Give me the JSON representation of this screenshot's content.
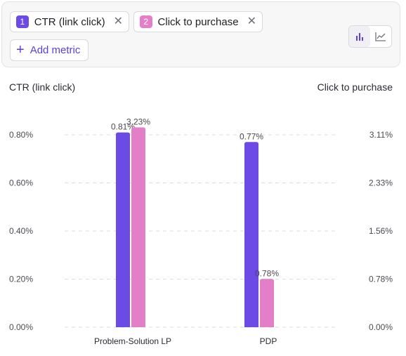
{
  "metrics": [
    {
      "index": "1",
      "label": "CTR (link click)",
      "color": "#6c4ae6"
    },
    {
      "index": "2",
      "label": "Click to purchase",
      "color": "#e27fc8"
    }
  ],
  "add_metric_label": "Add metric",
  "remove_glyph": "✕",
  "view_toggle": {
    "options": [
      "bar-chart-icon",
      "line-chart-icon"
    ],
    "selected": "bar-chart-icon"
  },
  "chart_data": {
    "type": "bar",
    "categories": [
      "Problem-Solution LP",
      "PDP"
    ],
    "series": [
      {
        "name": "CTR (link click)",
        "axis": "left",
        "values": [
          0.81,
          0.77
        ],
        "labels": [
          "0.81%",
          "0.77%"
        ],
        "color": "#6c4ae6"
      },
      {
        "name": "Click to purchase",
        "axis": "right",
        "values": [
          3.23,
          0.78
        ],
        "labels": [
          "3.23%",
          "0.78%"
        ],
        "color": "#e27fc8"
      }
    ],
    "ylabel_left": "CTR (link click)",
    "ylabel_right": "Click to purchase",
    "left_axis": {
      "ylim": [
        0,
        0.8
      ],
      "ticks": [
        "0.00%",
        "0.20%",
        "0.40%",
        "0.60%",
        "0.80%"
      ]
    },
    "right_axis": {
      "ylim": [
        0,
        3.11
      ],
      "ticks": [
        "0.00%",
        "0.78%",
        "1.56%",
        "2.33%",
        "3.11%"
      ]
    },
    "grid": "horizontal-dashed",
    "legend": "top-left"
  }
}
